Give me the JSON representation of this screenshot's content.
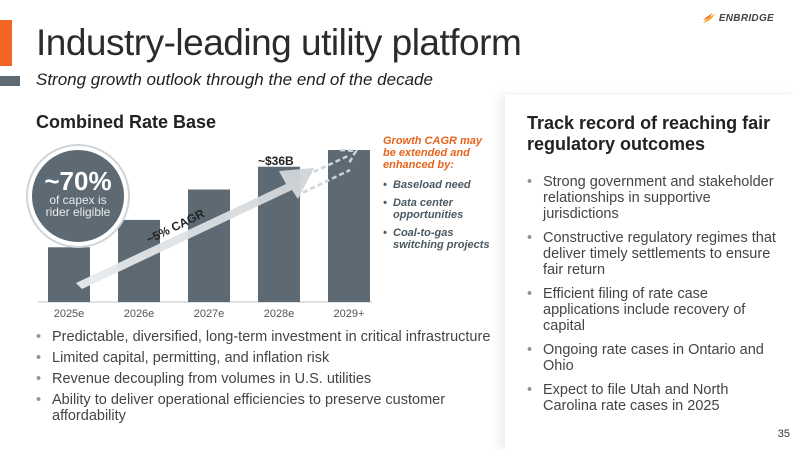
{
  "header": {
    "title": "Industry-leading utility platform",
    "subtitle": "Strong growth outlook through the end of the decade",
    "logo_text": "ENBRIDGE"
  },
  "left": {
    "section_title": "Combined Rate Base",
    "badge": {
      "value": "~70%",
      "line1": "of capex is",
      "line2": "rider eligible"
    },
    "bar_annotation": "~$36B",
    "cagr_label": "~5% CAGR",
    "bullets": [
      "Predictable, diversified, long-term investment in critical infrastructure",
      "Limited capital, permitting, and inflation risk",
      "Revenue decoupling from volumes in U.S. utilities",
      "Ability to deliver operational efficiencies to preserve customer affordability"
    ]
  },
  "growth_note": {
    "heading": "Growth CAGR may be extended and enhanced by:",
    "items": [
      "Baseload need",
      "Data center opportunities",
      "Coal-to-gas switching projects"
    ]
  },
  "chart_data": {
    "type": "bar",
    "categories": [
      "2025e",
      "2026e",
      "2027e",
      "2028e",
      "2029+"
    ],
    "values": [
      0.36,
      0.54,
      0.74,
      0.89,
      1.0
    ],
    "value_unit": "fraction of the 2029+ bar height (no axis scale printed)",
    "annotations": [
      {
        "category": "2028e",
        "text": "~$36B"
      }
    ],
    "bar_color": "#5d6a73",
    "arrow_color": "#d8dcdf"
  },
  "right": {
    "title": "Track record of reaching fair regulatory outcomes",
    "bullets": [
      "Strong government and stakeholder relationships in supportive jurisdictions",
      "Constructive regulatory regimes that deliver timely settlements to ensure fair return",
      "Efficient filing of rate case applications include recovery of capital",
      "Ongoing rate cases in Ontario and Ohio",
      "Expect to file Utah and North Carolina rate cases in 2025"
    ]
  },
  "footer": {
    "page_number": "35"
  },
  "colors": {
    "accent": "#f26522",
    "slate": "#5d6a73",
    "growth_heading": "#e8641b"
  }
}
